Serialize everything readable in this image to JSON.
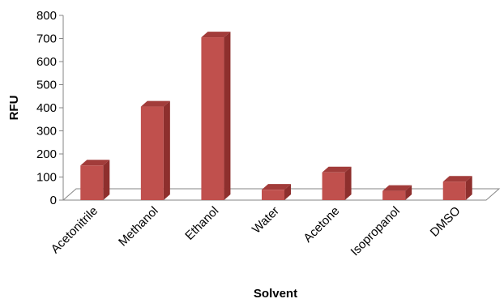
{
  "chart_data": {
    "type": "bar",
    "categories": [
      "Acetonitrile",
      "Methanol",
      "Ethanol",
      "Water",
      "Acetone",
      "Isopropanol",
      "DMSO"
    ],
    "values": [
      150,
      405,
      705,
      45,
      120,
      40,
      80
    ],
    "xlabel": "Solvent",
    "ylabel": "RFU",
    "ylim": [
      0,
      800
    ],
    "yticks": [
      "0",
      "100",
      "200",
      "300",
      "400",
      "500",
      "600",
      "700",
      "800"
    ],
    "grid": false,
    "legend": "none",
    "style": "3d-column",
    "colors": {
      "bar_front": "#C0504D",
      "bar_side": "#8E2F2D",
      "bar_top": "#A23C3A",
      "axis": "#868686"
    }
  }
}
